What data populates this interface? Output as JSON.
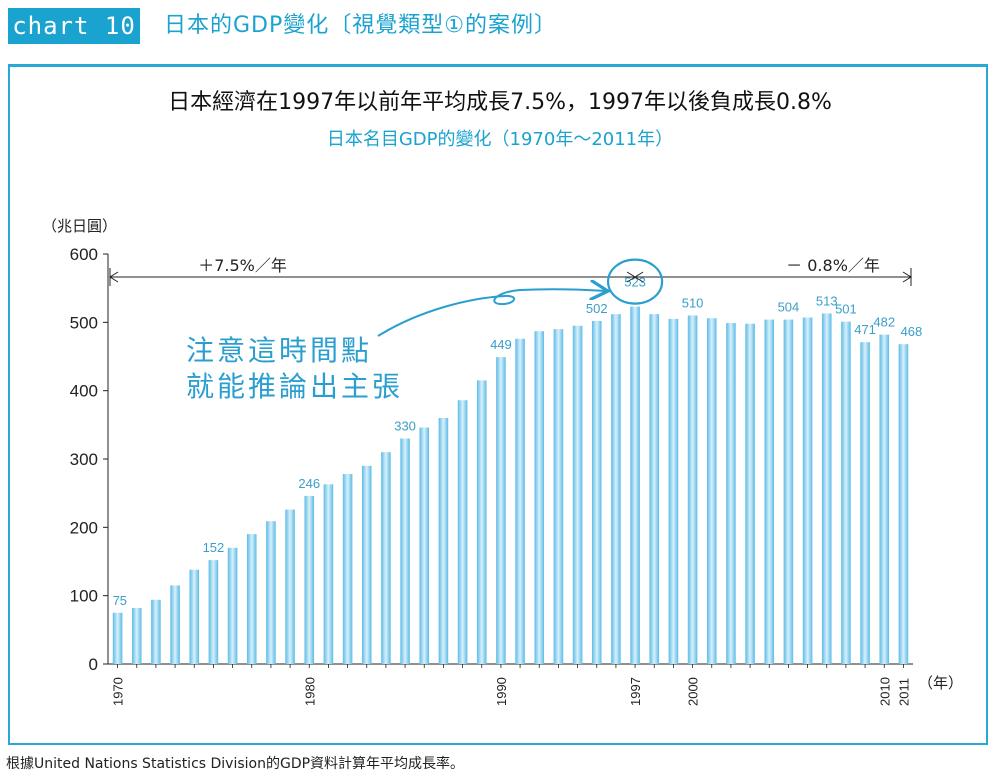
{
  "header": {
    "tag": "chart 10",
    "title": "日本的GDP變化〔視覺類型①的案例〕"
  },
  "chart_data": {
    "type": "bar",
    "title": "日本經濟在1997年以前年平均成長7.5%，1997年以後負成長0.8%",
    "subtitle": "日本名目GDP的變化（1970年～2011年）",
    "ylabel": "（兆日圓）",
    "xlabel": "（年）",
    "ylim": [
      0,
      600
    ],
    "yticks": [
      "0",
      "100",
      "200",
      "300",
      "400",
      "500",
      "600"
    ],
    "x": [
      1970,
      1971,
      1972,
      1973,
      1974,
      1975,
      1976,
      1977,
      1978,
      1979,
      1980,
      1981,
      1982,
      1983,
      1984,
      1985,
      1986,
      1987,
      1988,
      1989,
      1990,
      1991,
      1992,
      1993,
      1994,
      1995,
      1996,
      1997,
      1998,
      1999,
      2000,
      2001,
      2002,
      2003,
      2004,
      2005,
      2006,
      2007,
      2008,
      2009,
      2010,
      2011
    ],
    "values": [
      75,
      82,
      94,
      115,
      138,
      152,
      170,
      190,
      209,
      226,
      246,
      263,
      278,
      290,
      310,
      330,
      346,
      360,
      386,
      415,
      449,
      476,
      487,
      490,
      495,
      502,
      512,
      523,
      512,
      505,
      510,
      506,
      499,
      498,
      504,
      504,
      507,
      513,
      501,
      471,
      482,
      468
    ],
    "xtick_labels": [
      "1970",
      "1980",
      "1990",
      "1997",
      "2000",
      "2010",
      "2011"
    ],
    "data_labels": [
      {
        "year": 1970,
        "text": "75"
      },
      {
        "year": 1975,
        "text": "152"
      },
      {
        "year": 1980,
        "text": "246"
      },
      {
        "year": 1985,
        "text": "330"
      },
      {
        "year": 1990,
        "text": "449"
      },
      {
        "year": 1995,
        "text": "502"
      },
      {
        "year": 1997,
        "text": "523"
      },
      {
        "year": 2000,
        "text": "510"
      },
      {
        "year": 2005,
        "text": "504"
      },
      {
        "year": 2007,
        "text": "513"
      },
      {
        "year": 2008,
        "text": "501"
      },
      {
        "year": 2009,
        "text": "471"
      },
      {
        "year": 2010,
        "text": "482"
      },
      {
        "year": 2011,
        "text": "468"
      }
    ],
    "periods": [
      {
        "label": "＋7.5%／年",
        "from": 1970,
        "to": 1997
      },
      {
        "label": "－ 0.8%／年",
        "from": 1997,
        "to": 2011
      }
    ],
    "annotation": {
      "line1": "注意這時間點",
      "line2": "就能推論出主張",
      "target_year": 1997
    },
    "bar_color": "#8fd0ee"
  },
  "footer": {
    "source": "根據United Nations Statistics Division的GDP資料計算年平均成長率。"
  }
}
